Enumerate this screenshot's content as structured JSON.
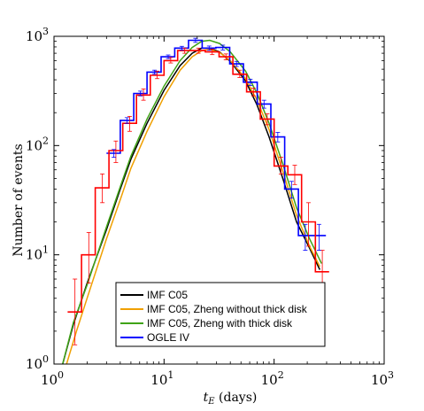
{
  "chart_data": {
    "type": "line",
    "title": "",
    "xlabel": "t_E (days)",
    "xlabel_main": "t",
    "xlabel_sub": "E",
    "xlabel_unit": " (days)",
    "ylabel": "Number of events",
    "xscale": "log",
    "yscale": "log",
    "xlim": [
      1,
      1000
    ],
    "ylim": [
      1,
      1000
    ],
    "x_ticks": [
      {
        "base": "10",
        "exp": "0",
        "value": 1
      },
      {
        "base": "10",
        "exp": "1",
        "value": 10
      },
      {
        "base": "10",
        "exp": "2",
        "value": 100
      },
      {
        "base": "10",
        "exp": "3",
        "value": 1000
      }
    ],
    "y_ticks": [
      {
        "base": "10",
        "exp": "0",
        "value": 1
      },
      {
        "base": "10",
        "exp": "1",
        "value": 10
      },
      {
        "base": "10",
        "exp": "2",
        "value": 100
      },
      {
        "base": "10",
        "exp": "3",
        "value": 1000
      }
    ],
    "grid": false,
    "legend_position": "bottom-left",
    "series": [
      {
        "name": "IMF C05",
        "color": "#000000",
        "style": "line",
        "points": [
          [
            1.2,
            1.0
          ],
          [
            1.5,
            2.3
          ],
          [
            2.0,
            5.5
          ],
          [
            3.0,
            17
          ],
          [
            4.0,
            40
          ],
          [
            5.0,
            75
          ],
          [
            7.0,
            160
          ],
          [
            10.0,
            320
          ],
          [
            14.0,
            540
          ],
          [
            18.0,
            700
          ],
          [
            22.0,
            780
          ],
          [
            26.0,
            780
          ],
          [
            32.0,
            720
          ],
          [
            40.0,
            590
          ],
          [
            55.0,
            390
          ],
          [
            70.0,
            235
          ],
          [
            90.0,
            120
          ],
          [
            120.0,
            50
          ],
          [
            160.0,
            20
          ],
          [
            210.0,
            11.5
          ],
          [
            260.0,
            7.3
          ]
        ]
      },
      {
        "name": "IMF C05, Zheng without thick disk",
        "color": "#f0a000",
        "style": "line",
        "points": [
          [
            1.3,
            1.0
          ],
          [
            1.6,
            2.0
          ],
          [
            2.0,
            4.0
          ],
          [
            3.0,
            14
          ],
          [
            4.0,
            32
          ],
          [
            5.0,
            62
          ],
          [
            7.0,
            135
          ],
          [
            10.0,
            280
          ],
          [
            14.0,
            490
          ],
          [
            18.0,
            650
          ],
          [
            22.0,
            740
          ],
          [
            26.0,
            760
          ],
          [
            32.0,
            710
          ],
          [
            40.0,
            600
          ],
          [
            55.0,
            410
          ],
          [
            70.0,
            260
          ],
          [
            90.0,
            140
          ],
          [
            120.0,
            58
          ],
          [
            160.0,
            23
          ],
          [
            210.0,
            12
          ],
          [
            260.0,
            7.8
          ]
        ]
      },
      {
        "name": "IMF C05, Zheng with thick disk",
        "color": "#3fa316",
        "style": "line",
        "points": [
          [
            1.2,
            1.0
          ],
          [
            1.5,
            2.4
          ],
          [
            2.0,
            5.3
          ],
          [
            3.0,
            18
          ],
          [
            4.0,
            42
          ],
          [
            5.0,
            80
          ],
          [
            7.0,
            175
          ],
          [
            10.0,
            350
          ],
          [
            14.0,
            600
          ],
          [
            18.0,
            790
          ],
          [
            22.0,
            900
          ],
          [
            26.0,
            920
          ],
          [
            32.0,
            860
          ],
          [
            40.0,
            720
          ],
          [
            55.0,
            480
          ],
          [
            70.0,
            300
          ],
          [
            90.0,
            160
          ],
          [
            120.0,
            68
          ],
          [
            160.0,
            27
          ],
          [
            210.0,
            14
          ],
          [
            270.0,
            8.3
          ]
        ]
      },
      {
        "name": "OGLE IV",
        "color": "#0000ff",
        "style": "step",
        "edges": [
          3.0,
          4.0,
          5.3,
          7.0,
          9.4,
          12.5,
          16.7,
          22.2,
          29.6,
          39.5,
          52.6,
          70.2,
          93.5,
          124.7,
          166.3,
          221.7,
          295.6
        ],
        "values": [
          85,
          170,
          300,
          470,
          650,
          780,
          920,
          780,
          790,
          560,
          380,
          240,
          120,
          40,
          15,
          15
        ]
      },
      {
        "name": "",
        "color": "#ff0000",
        "style": "step",
        "edges": [
          1.33,
          1.78,
          2.37,
          3.16,
          4.22,
          5.62,
          7.5,
          10.0,
          13.3,
          17.8,
          23.7,
          31.6,
          42.2,
          56.2,
          75.0,
          100.0,
          133.3,
          177.8,
          237.1,
          316.2
        ],
        "values": [
          3,
          10,
          41,
          90,
          160,
          290,
          440,
          600,
          740,
          740,
          720,
          650,
          450,
          310,
          175,
          65,
          54,
          20,
          7
        ]
      }
    ],
    "error_bars": [
      {
        "color": "#ff0000",
        "x": 1.55,
        "low": 1.5,
        "high": 6.0
      },
      {
        "color": "#ff0000",
        "x": 2.07,
        "low": 5.5,
        "high": 16
      },
      {
        "color": "#ff0000",
        "x": 2.75,
        "low": 30,
        "high": 55
      },
      {
        "color": "#ff0000",
        "x": 3.65,
        "low": 70,
        "high": 110
      },
      {
        "color": "#ff0000",
        "x": 4.87,
        "low": 135,
        "high": 185
      },
      {
        "color": "#ff0000",
        "x": 6.5,
        "low": 260,
        "high": 330
      },
      {
        "color": "#ff0000",
        "x": 8.66,
        "low": 410,
        "high": 480
      },
      {
        "color": "#ff0000",
        "x": 11.5,
        "low": 570,
        "high": 640
      },
      {
        "color": "#ff0000",
        "x": 15.4,
        "low": 700,
        "high": 780
      },
      {
        "color": "#ff0000",
        "x": 20.5,
        "low": 700,
        "high": 780
      },
      {
        "color": "#ff0000",
        "x": 27.4,
        "low": 680,
        "high": 760
      },
      {
        "color": "#ff0000",
        "x": 36.5,
        "low": 610,
        "high": 690
      },
      {
        "color": "#ff0000",
        "x": 48.7,
        "low": 420,
        "high": 490
      },
      {
        "color": "#ff0000",
        "x": 64.9,
        "low": 285,
        "high": 335
      },
      {
        "color": "#ff0000",
        "x": 86.6,
        "low": 155,
        "high": 195
      },
      {
        "color": "#ff0000",
        "x": 115.5,
        "low": 55,
        "high": 78
      },
      {
        "color": "#ff0000",
        "x": 154,
        "low": 44,
        "high": 66
      },
      {
        "color": "#ff0000",
        "x": 205,
        "low": 12,
        "high": 30
      },
      {
        "color": "#ff0000",
        "x": 274,
        "low": 2.0,
        "high": 11
      },
      {
        "color": "#0000ff",
        "x": 3.5,
        "low": 78,
        "high": 92
      },
      {
        "color": "#0000ff",
        "x": 4.6,
        "low": 160,
        "high": 180
      },
      {
        "color": "#0000ff",
        "x": 6.1,
        "low": 285,
        "high": 315
      },
      {
        "color": "#0000ff",
        "x": 8.2,
        "low": 450,
        "high": 490
      },
      {
        "color": "#0000ff",
        "x": 10.9,
        "low": 625,
        "high": 675
      },
      {
        "color": "#0000ff",
        "x": 14.5,
        "low": 750,
        "high": 810
      },
      {
        "color": "#0000ff",
        "x": 19.3,
        "low": 880,
        "high": 960
      },
      {
        "color": "#0000ff",
        "x": 25.7,
        "low": 745,
        "high": 815
      },
      {
        "color": "#0000ff",
        "x": 34.2,
        "low": 750,
        "high": 830
      },
      {
        "color": "#0000ff",
        "x": 45.6,
        "low": 530,
        "high": 590
      },
      {
        "color": "#0000ff",
        "x": 60.8,
        "low": 355,
        "high": 405
      },
      {
        "color": "#0000ff",
        "x": 81.0,
        "low": 220,
        "high": 260
      },
      {
        "color": "#0000ff",
        "x": 108,
        "low": 108,
        "high": 132
      },
      {
        "color": "#0000ff",
        "x": 144,
        "low": 33,
        "high": 47
      },
      {
        "color": "#0000ff",
        "x": 192,
        "low": 11,
        "high": 19
      },
      {
        "color": "#0000ff",
        "x": 256,
        "low": 11,
        "high": 19
      }
    ]
  }
}
